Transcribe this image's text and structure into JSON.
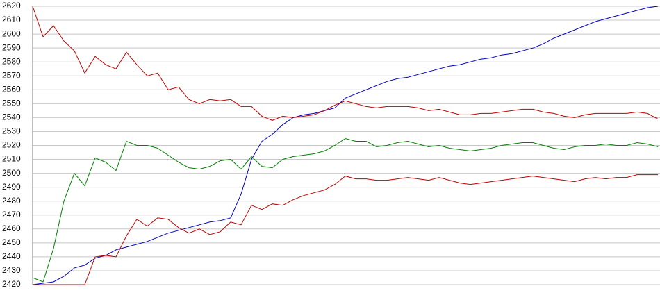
{
  "chart_data": {
    "type": "line",
    "ylim": [
      2420,
      2620
    ],
    "yticks": [
      2420,
      2430,
      2440,
      2450,
      2460,
      2470,
      2480,
      2490,
      2500,
      2510,
      2520,
      2530,
      2540,
      2550,
      2560,
      2570,
      2580,
      2590,
      2600,
      2610,
      2620
    ],
    "grid": true,
    "series": [
      {
        "color": "#0000c0",
        "values": [
          2420,
          2421,
          2422,
          2426,
          2432,
          2434,
          2439,
          2441,
          2445,
          2447,
          2449,
          2451,
          2454,
          2457,
          2459,
          2461,
          2463,
          2465,
          2466,
          2468,
          2485,
          2510,
          2523,
          2528,
          2535,
          2540,
          2542,
          2543,
          2545,
          2547,
          2554,
          2557,
          2560,
          2563,
          2566,
          2568,
          2569,
          2571,
          2573,
          2575,
          2577,
          2578,
          2580,
          2582,
          2583,
          2585,
          2586,
          2588,
          2590,
          2593,
          2597,
          2600,
          2603,
          2606,
          2609,
          2611,
          2613,
          2615,
          2617,
          2619,
          2620
        ]
      },
      {
        "color": "#c00000",
        "values": [
          2620,
          2598,
          2606,
          2595,
          2588,
          2572,
          2584,
          2578,
          2575,
          2587,
          2578,
          2570,
          2572,
          2560,
          2562,
          2553,
          2550,
          2553,
          2552,
          2553,
          2548,
          2548,
          2541,
          2538,
          2541,
          2540,
          2541,
          2542,
          2545,
          2549,
          2552,
          2550,
          2548,
          2547,
          2548,
          2548,
          2548,
          2547,
          2545,
          2546,
          2544,
          2542,
          2542,
          2543,
          2543,
          2544,
          2545,
          2546,
          2546,
          2544,
          2543,
          2541,
          2540,
          2542,
          2543,
          2543,
          2543,
          2543,
          2544,
          2543,
          2539
        ]
      },
      {
        "color": "#008000",
        "values": [
          2425,
          2422,
          2446,
          2480,
          2500,
          2491,
          2511,
          2508,
          2502,
          2523,
          2520,
          2520,
          2518,
          2513,
          2508,
          2504,
          2503,
          2505,
          2509,
          2510,
          2503,
          2512,
          2505,
          2504,
          2510,
          2512,
          2513,
          2514,
          2516,
          2520,
          2525,
          2523,
          2523,
          2519,
          2520,
          2522,
          2523,
          2521,
          2519,
          2520,
          2518,
          2517,
          2516,
          2517,
          2518,
          2520,
          2521,
          2522,
          2522,
          2520,
          2518,
          2517,
          2519,
          2520,
          2520,
          2521,
          2520,
          2520,
          2522,
          2521,
          2519
        ]
      },
      {
        "color": "#c00000",
        "values": [
          2420,
          2420,
          2420,
          2420,
          2420,
          2420,
          2440,
          2441,
          2440,
          2455,
          2467,
          2462,
          2468,
          2467,
          2461,
          2457,
          2460,
          2456,
          2458,
          2465,
          2463,
          2477,
          2474,
          2478,
          2477,
          2481,
          2484,
          2486,
          2488,
          2492,
          2498,
          2496,
          2496,
          2495,
          2495,
          2496,
          2497,
          2496,
          2495,
          2497,
          2495,
          2493,
          2492,
          2493,
          2494,
          2495,
          2496,
          2497,
          2498,
          2497,
          2496,
          2495,
          2494,
          2496,
          2497,
          2496,
          2497,
          2497,
          2499,
          2499,
          2499
        ]
      }
    ]
  }
}
